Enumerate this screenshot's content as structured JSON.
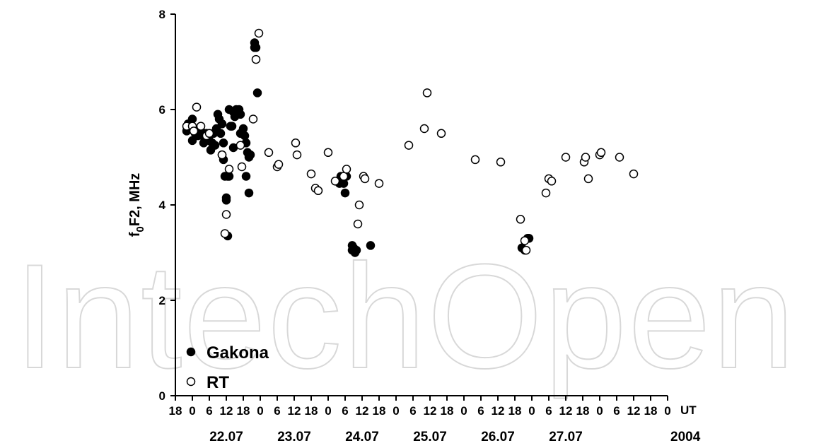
{
  "chart_data": {
    "type": "scatter",
    "ylabel": "f0F2, MHz",
    "ylabel_main": "f",
    "ylabel_sub": "0",
    "ylabel_rest": "F2, MHz",
    "ylim": [
      0,
      8
    ],
    "yticks": [
      "0",
      "2",
      "4",
      "6",
      "8"
    ],
    "x_unit_label": "UT",
    "x_tick_labels": [
      "18",
      "0",
      "6",
      "12",
      "18",
      "0",
      "6",
      "12",
      "18",
      "0",
      "6",
      "12",
      "18",
      "0",
      "6",
      "12",
      "18",
      "0",
      "6",
      "12",
      "18",
      "0",
      "6",
      "12",
      "18",
      "0",
      "6",
      "12",
      "18",
      "0"
    ],
    "x_hours_range": [
      -6,
      168
    ],
    "date_labels": [
      {
        "label": "22.07",
        "at_hour": 12
      },
      {
        "label": "23.07",
        "at_hour": 36
      },
      {
        "label": "24.07",
        "at_hour": 60
      },
      {
        "label": "25.07",
        "at_hour": 84
      },
      {
        "label": "26.07",
        "at_hour": 108
      },
      {
        "label": "27.07",
        "at_hour": 132
      }
    ],
    "year_label": "2004",
    "grid": false,
    "legend_position": "bottom-left",
    "series": [
      {
        "name": "Gakona",
        "marker": "filled-circle",
        "color": "#000000",
        "points": [
          [
            -2,
            5.55
          ],
          [
            -1.5,
            5.7
          ],
          [
            0,
            5.8
          ],
          [
            0,
            5.35
          ],
          [
            0.5,
            5.6
          ],
          [
            1,
            5.5
          ],
          [
            2,
            5.45
          ],
          [
            2.5,
            5.6
          ],
          [
            3,
            5.55
          ],
          [
            3.5,
            5.45
          ],
          [
            4,
            5.3
          ],
          [
            4.5,
            5.4
          ],
          [
            5,
            5.5
          ],
          [
            6,
            5.35
          ],
          [
            6.5,
            5.15
          ],
          [
            7,
            5.3
          ],
          [
            7.5,
            5.5
          ],
          [
            8,
            5.25
          ],
          [
            8.5,
            5.6
          ],
          [
            9,
            5.9
          ],
          [
            9.5,
            5.8
          ],
          [
            10,
            5.5
          ],
          [
            10.5,
            5.7
          ],
          [
            10.5,
            5.05
          ],
          [
            11,
            5.3
          ],
          [
            11,
            4.95
          ],
          [
            11.5,
            4.6
          ],
          [
            12,
            4.15
          ],
          [
            12,
            4.1
          ],
          [
            12.5,
            3.35
          ],
          [
            12.5,
            4.6
          ],
          [
            13,
            4.6
          ],
          [
            13,
            6.0
          ],
          [
            13.5,
            5.65
          ],
          [
            14,
            5.65
          ],
          [
            14.5,
            5.95
          ],
          [
            14.5,
            5.2
          ],
          [
            15,
            5.85
          ],
          [
            15.5,
            6.0
          ],
          [
            16,
            5.95
          ],
          [
            16.5,
            6.0
          ],
          [
            17,
            5.9
          ],
          [
            17,
            5.5
          ],
          [
            17.5,
            5.5
          ],
          [
            18,
            5.6
          ],
          [
            18.5,
            5.45
          ],
          [
            19,
            5.3
          ],
          [
            19,
            4.6
          ],
          [
            19.5,
            5.1
          ],
          [
            20,
            4.25
          ],
          [
            20,
            5.0
          ],
          [
            20.5,
            5.05
          ],
          [
            22,
            7.4
          ],
          [
            22,
            7.3
          ],
          [
            22.5,
            7.3
          ],
          [
            23,
            6.35
          ],
          [
            52,
            4.45
          ],
          [
            52.5,
            4.6
          ],
          [
            53,
            4.5
          ],
          [
            53.5,
            4.45
          ],
          [
            54,
            4.25
          ],
          [
            54.5,
            4.6
          ],
          [
            56.5,
            3.15
          ],
          [
            56.5,
            3.05
          ],
          [
            57,
            3.1
          ],
          [
            57.5,
            3.0
          ],
          [
            58,
            3.05
          ],
          [
            63,
            3.15
          ],
          [
            116.5,
            3.1
          ],
          [
            117.5,
            3.05
          ],
          [
            118.5,
            3.3
          ],
          [
            119,
            3.3
          ]
        ]
      },
      {
        "name": "RT",
        "marker": "open-circle",
        "color": "#000000",
        "points": [
          [
            -2,
            5.65
          ],
          [
            0,
            5.65
          ],
          [
            0.5,
            5.55
          ],
          [
            1.5,
            6.05
          ],
          [
            3,
            5.65
          ],
          [
            5,
            5.45
          ],
          [
            6,
            5.5
          ],
          [
            10.5,
            5.05
          ],
          [
            11.5,
            3.4
          ],
          [
            12,
            3.8
          ],
          [
            13,
            4.75
          ],
          [
            17,
            5.25
          ],
          [
            17.5,
            4.8
          ],
          [
            21.5,
            5.8
          ],
          [
            22.5,
            7.05
          ],
          [
            23.5,
            7.6
          ],
          [
            27,
            5.1
          ],
          [
            30,
            4.8
          ],
          [
            30.5,
            4.85
          ],
          [
            36.5,
            5.3
          ],
          [
            37,
            5.05
          ],
          [
            42,
            4.65
          ],
          [
            43.5,
            4.35
          ],
          [
            44.5,
            4.3
          ],
          [
            48,
            5.1
          ],
          [
            50.5,
            4.5
          ],
          [
            53.5,
            4.6
          ],
          [
            54.5,
            4.75
          ],
          [
            58.5,
            3.6
          ],
          [
            59,
            4.0
          ],
          [
            60.5,
            4.6
          ],
          [
            61,
            4.55
          ],
          [
            66,
            4.45
          ],
          [
            76.5,
            5.25
          ],
          [
            82,
            5.6
          ],
          [
            83,
            6.35
          ],
          [
            88,
            5.5
          ],
          [
            100,
            4.95
          ],
          [
            109,
            4.9
          ],
          [
            116,
            3.7
          ],
          [
            117.5,
            3.25
          ],
          [
            118,
            3.05
          ],
          [
            125,
            4.25
          ],
          [
            126,
            4.55
          ],
          [
            127,
            4.5
          ],
          [
            132,
            5.0
          ],
          [
            138.5,
            4.9
          ],
          [
            139,
            5.0
          ],
          [
            140,
            4.55
          ],
          [
            144,
            5.05
          ],
          [
            144.5,
            5.1
          ],
          [
            151,
            5.0
          ],
          [
            156,
            4.65
          ]
        ]
      }
    ]
  },
  "watermark": "IntechOpen"
}
